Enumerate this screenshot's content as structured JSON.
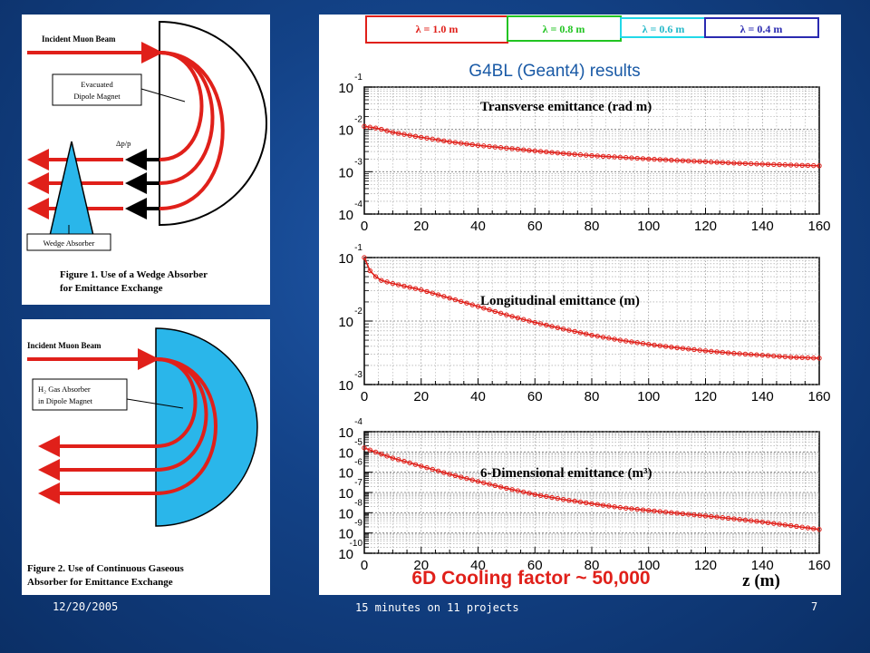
{
  "figure1": {
    "incident": "Incident Muon Beam",
    "magnet_line1": "Evacuated",
    "magnet_line2": "Dipole Magnet",
    "dp": "Δp/p",
    "wedge": "Wedge Absorber",
    "caption1": "Figure 1. Use of a Wedge Absorber",
    "caption2": "for Emittance Exchange"
  },
  "figure2": {
    "incident": "Incident Muon Beam",
    "absorber_line1": "H₂ Gas Absorber",
    "absorber_line2": "in Dipole Magnet",
    "caption1": "Figure 2. Use of Continuous Gaseous",
    "caption2": "Absorber for Emittance Exchange"
  },
  "legend": [
    {
      "label": "λ = 1.0 m",
      "color": "#e0201a"
    },
    {
      "label": "λ = 0.8 m",
      "color": "#22c422"
    },
    {
      "label": "λ = 0.6 m",
      "color": "#22d8e8"
    },
    {
      "label": "λ = 0.4 m",
      "color": "#2a2ab0"
    }
  ],
  "results_title": "G4BL (Geant4) results",
  "cooling_factor": "6D Cooling factor ~ 50,000",
  "x_axis_label": "z (m)",
  "chart_data": [
    {
      "type": "line",
      "title": "Transverse emittance (rad m)",
      "xlim": [
        0,
        160
      ],
      "x_ticks": [
        "0",
        "20",
        "40",
        "60",
        "80",
        "100",
        "120",
        "140",
        "160"
      ],
      "y_scale": "log",
      "ylim": [
        0.0001,
        0.1
      ],
      "y_ticks": [
        {
          "base": "10",
          "exp": "-1"
        },
        {
          "base": "10",
          "exp": "-2"
        },
        {
          "base": "10",
          "exp": "-3"
        },
        {
          "base": "10",
          "exp": "-4"
        }
      ],
      "grid": true,
      "series": [
        {
          "color": "#e0201a",
          "x": [
            0,
            5,
            10,
            20,
            30,
            40,
            50,
            60,
            70,
            80,
            90,
            100,
            110,
            120,
            130,
            140,
            150,
            160
          ],
          "y": [
            0.0118,
            0.0105,
            0.0085,
            0.0065,
            0.0051,
            0.0042,
            0.0036,
            0.0031,
            0.0027,
            0.0024,
            0.0022,
            0.002,
            0.00185,
            0.00172,
            0.0016,
            0.00151,
            0.00144,
            0.00138
          ]
        }
      ]
    },
    {
      "type": "line",
      "title": "Longitudinal emittance (m)",
      "xlim": [
        0,
        160
      ],
      "x_ticks": [
        "0",
        "20",
        "40",
        "60",
        "80",
        "100",
        "120",
        "140",
        "160"
      ],
      "y_scale": "log",
      "ylim": [
        0.001,
        0.1
      ],
      "y_ticks": [
        {
          "base": "10",
          "exp": "-1"
        },
        {
          "base": "10",
          "exp": "-2"
        },
        {
          "base": "10",
          "exp": "-3"
        }
      ],
      "grid": true,
      "series": [
        {
          "color": "#e0201a",
          "x": [
            0,
            2,
            5,
            10,
            20,
            30,
            40,
            50,
            60,
            70,
            80,
            90,
            100,
            110,
            120,
            130,
            140,
            150,
            160
          ],
          "y": [
            0.1,
            0.062,
            0.045,
            0.039,
            0.031,
            0.023,
            0.017,
            0.0125,
            0.0095,
            0.0075,
            0.006,
            0.005,
            0.0043,
            0.0038,
            0.0034,
            0.0031,
            0.0029,
            0.0027,
            0.0026
          ]
        }
      ]
    },
    {
      "type": "line",
      "title": "6-Dimensional emittance (m³)",
      "xlim": [
        0,
        160
      ],
      "x_ticks": [
        "0",
        "20",
        "40",
        "60",
        "80",
        "100",
        "120",
        "140",
        "160"
      ],
      "y_scale": "log",
      "ylim": [
        1e-10,
        0.0001
      ],
      "y_ticks": [
        {
          "base": "10",
          "exp": "-4"
        },
        {
          "base": "10",
          "exp": "-5"
        },
        {
          "base": "10",
          "exp": "-6"
        },
        {
          "base": "10",
          "exp": "-7"
        },
        {
          "base": "10",
          "exp": "-8"
        },
        {
          "base": "10",
          "exp": "-9"
        },
        {
          "base": "10",
          "exp": "-10"
        }
      ],
      "grid": true,
      "series": [
        {
          "color": "#e0201a",
          "x": [
            0,
            3,
            10,
            20,
            30,
            40,
            50,
            60,
            70,
            80,
            90,
            100,
            110,
            120,
            130,
            140,
            150,
            160
          ],
          "y": [
            1.6e-05,
            1.1e-05,
            5e-06,
            2e-06,
            8e-07,
            3.5e-07,
            1.6e-07,
            8e-08,
            4.5e-08,
            2.8e-08,
            1.8e-08,
            1.3e-08,
            9.5e-09,
            7e-09,
            5e-09,
            3.5e-09,
            2.3e-09,
            1.5e-09
          ]
        }
      ]
    }
  ],
  "footer": {
    "date": "12/20/2005",
    "center": "15 minutes on 11 projects",
    "page": "7"
  }
}
